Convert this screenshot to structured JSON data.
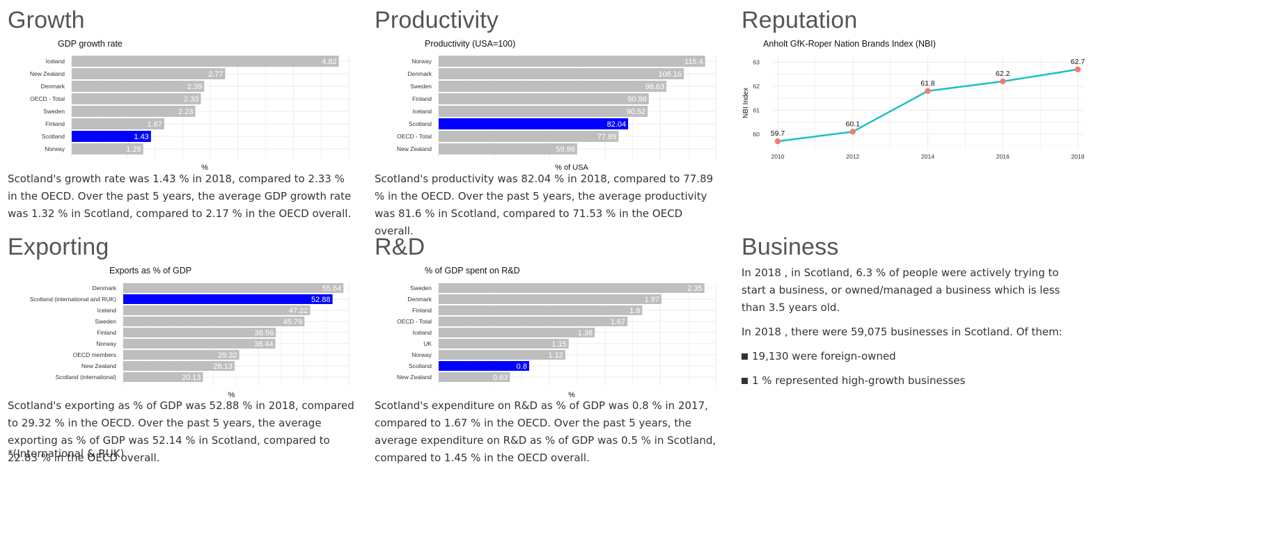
{
  "panels": {
    "growth": {
      "heading": "Growth",
      "text": "Scotland's growth rate was 1.43 % in 2018, compared to 2.33 % in the OECD. Over the past 5 years, the average GDP growth rate was 1.32 % in Scotland, compared to 2.17 % in the OECD overall."
    },
    "productivity": {
      "heading": "Productivity",
      "text": "Scotland's productivity was 82.04 % in 2018, compared to 77.89 % in the OECD. Over the past 5 years, the average productivity was 81.6 % in Scotland, compared to 71.53 % in the OECD overall."
    },
    "reputation": {
      "heading": "Reputation"
    },
    "exporting": {
      "heading": "Exporting",
      "text": "Scotland's exporting as % of GDP was 52.88 % in 2018, compared to 29.32 % in the OECD. Over the past 5 years, the average exporting as % of GDP was 52.14 % in Scotland, compared to 22.83 % in the OECD overall.",
      "footnote": "*(International & RUK)"
    },
    "rd": {
      "heading": "R&D",
      "text": "Scotland's expenditure on R&D as % of GDP was 0.8 % in 2017, compared to 1.67 % in the OECD. Over the past 5 years, the average expenditure on R&D as % of GDP was 0.5 % in Scotland, compared to 1.45 % in the OECD overall."
    },
    "business": {
      "heading": "Business",
      "para1": "In 2018 , in Scotland, 6.3 % of people were actively trying to start a business, or owned/managed a business which is less than 3.5 years old.",
      "para2": "In 2018 , there were 59,075 businesses in Scotland. Of them:",
      "bullet1": "19,130 were foreign-owned",
      "bullet2": "1 % represented high-growth businesses"
    }
  },
  "colors": {
    "bar": "#bebebe",
    "highlight": "#0000ff",
    "line": "#1bbfbf",
    "point": "#f47c6e",
    "grid": "#ebebeb"
  },
  "chart_data": [
    {
      "id": "growth",
      "type": "bar",
      "orientation": "horizontal",
      "title": "GDP growth rate",
      "xlabel": "%",
      "categories": [
        "Iceland",
        "New Zealand",
        "Denmark",
        "OECD - Total",
        "Sweden",
        "Finland",
        "Scotland",
        "Norway"
      ],
      "values": [
        4.82,
        2.77,
        2.39,
        2.33,
        2.23,
        1.67,
        1.43,
        1.29
      ],
      "labels": [
        "4.82",
        "2.77",
        "2.39",
        "2.33",
        "2.23",
        "1.67",
        "1.43",
        "1.29"
      ],
      "highlight": "Scotland",
      "xlim": [
        0,
        5
      ]
    },
    {
      "id": "productivity",
      "type": "bar",
      "orientation": "horizontal",
      "title": "Productivity (USA=100)",
      "xlabel": "% of USA",
      "categories": [
        "Norway",
        "Denmark",
        "Sweden",
        "Finland",
        "Iceland",
        "Scotland",
        "OECD - Total",
        "New Zealand"
      ],
      "values": [
        115.4,
        106.16,
        98.63,
        90.98,
        90.52,
        82.04,
        77.89,
        59.96
      ],
      "labels": [
        "115.4",
        "106.16",
        "98.63",
        "90.98",
        "90.52",
        "82.04",
        "77.89",
        "59.96"
      ],
      "highlight": "Scotland",
      "xlim": [
        0,
        120
      ]
    },
    {
      "id": "reputation",
      "type": "line",
      "title": "Anholt GfK-Roper Nation Brands Index (NBI)",
      "ylabel": "NBI Index",
      "x": [
        2010,
        2012,
        2014,
        2016,
        2018
      ],
      "x_ticks": [
        "2010",
        "2012",
        "2014",
        "2016",
        "2018"
      ],
      "y": [
        59.7,
        60.1,
        61.8,
        62.2,
        62.7
      ],
      "point_labels": [
        "59.7",
        "60.1",
        "61.8",
        "62.2",
        "62.7"
      ],
      "y_ticks": [
        "60",
        "61",
        "62",
        "63"
      ],
      "xlim": [
        2010,
        2018
      ],
      "ylim": [
        59.5,
        63.1
      ]
    },
    {
      "id": "exporting",
      "type": "bar",
      "orientation": "horizontal",
      "title": "Exports as % of GDP",
      "xlabel": "%",
      "categories": [
        "Denmark",
        "Scotland (international and RUK)",
        "Iceland",
        "Sweden",
        "Finland",
        "Norway",
        "OECD members",
        "New Zealand",
        "Scotland (international)"
      ],
      "values": [
        55.64,
        52.88,
        47.22,
        45.79,
        38.56,
        38.44,
        29.32,
        28.13,
        20.13
      ],
      "labels": [
        "55.64",
        "52.88",
        "47.22",
        "45.79",
        "38.56",
        "38.44",
        "29.32",
        "28.13",
        "20.13"
      ],
      "highlight": "Scotland (international and RUK)",
      "xlim": [
        0,
        57
      ]
    },
    {
      "id": "rd",
      "type": "bar",
      "orientation": "horizontal",
      "title": "% of GDP spent on R&D",
      "xlabel": "%",
      "categories": [
        "Sweden",
        "Denmark",
        "Finland",
        "OECD - Total",
        "Iceland",
        "UK",
        "Norway",
        "Scotland",
        "New Zealand"
      ],
      "values": [
        2.35,
        1.97,
        1.8,
        1.67,
        1.38,
        1.15,
        1.12,
        0.8,
        0.63
      ],
      "labels": [
        "2.35",
        "1.97",
        "1.8",
        "1.67",
        "1.38",
        "1.15",
        "1.12",
        "0.8",
        "0.63"
      ],
      "highlight": "Scotland",
      "xlim": [
        0,
        2.45
      ]
    }
  ]
}
